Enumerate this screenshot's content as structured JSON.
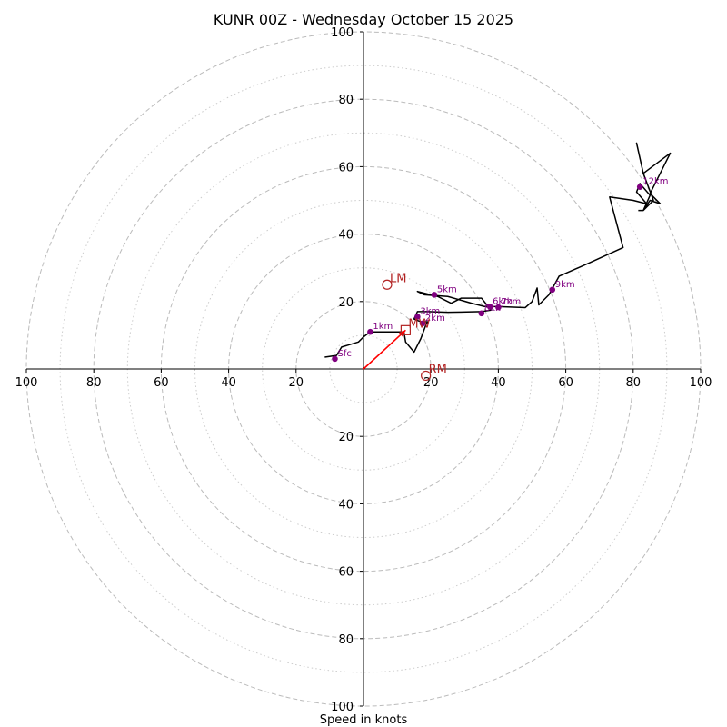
{
  "chart_data": {
    "type": "hodograph",
    "title": "KUNR 00Z - Wednesday October 15 2025",
    "xlabel": "Speed in knots",
    "ring_major": [
      20,
      40,
      60,
      80,
      100
    ],
    "ring_minor": [
      10,
      30,
      50,
      70,
      90
    ],
    "axis_tick_labels": [
      "100",
      "80",
      "60",
      "40",
      "20",
      "20",
      "40",
      "60",
      "80",
      "100"
    ],
    "axis_tick_values": [
      -100,
      -80,
      -60,
      -40,
      -20,
      20,
      40,
      60,
      80,
      100
    ],
    "y_tick_labels": [
      "100",
      "80",
      "60",
      "40",
      "20",
      "20",
      "40",
      "60",
      "80",
      "100"
    ],
    "y_tick_values": [
      100,
      80,
      60,
      40,
      20,
      -20,
      -40,
      -60,
      -80,
      -100
    ],
    "range": [
      -100,
      100
    ],
    "trace": [
      [
        -11.5,
        3.5
      ],
      [
        -8,
        4
      ],
      [
        -6.5,
        6.5
      ],
      [
        -1.5,
        8
      ],
      [
        0,
        9.5
      ],
      [
        2,
        11
      ],
      [
        12,
        11
      ],
      [
        12.5,
        8
      ],
      [
        15,
        5
      ],
      [
        17,
        9
      ],
      [
        18.5,
        13
      ],
      [
        19,
        14
      ],
      [
        17,
        14
      ],
      [
        15,
        14.8
      ],
      [
        16,
        17
      ],
      [
        19,
        17
      ],
      [
        25,
        16.8
      ],
      [
        35,
        17
      ],
      [
        38,
        17.5
      ],
      [
        37,
        18.5
      ],
      [
        35,
        21
      ],
      [
        29,
        21
      ],
      [
        26,
        19.5
      ],
      [
        22,
        21.5
      ],
      [
        16,
        23
      ],
      [
        18,
        22
      ],
      [
        25,
        21.5
      ],
      [
        32,
        19.5
      ],
      [
        36,
        18.5
      ],
      [
        40,
        18.5
      ],
      [
        48,
        18.2
      ],
      [
        50,
        20
      ],
      [
        51.5,
        24
      ],
      [
        52,
        19
      ],
      [
        55,
        22
      ],
      [
        58,
        27.5
      ],
      [
        66,
        31
      ],
      [
        77,
        36
      ],
      [
        73,
        51
      ],
      [
        80,
        50
      ],
      [
        84,
        49
      ],
      [
        81,
        52.5
      ],
      [
        82,
        55
      ],
      [
        85,
        51.5
      ],
      [
        83,
        47
      ],
      [
        85,
        50
      ],
      [
        88,
        49
      ],
      [
        85,
        52
      ],
      [
        91,
        64
      ],
      [
        83,
        58
      ],
      [
        81,
        67
      ],
      [
        83,
        58
      ],
      [
        86,
        50
      ],
      [
        83,
        47
      ],
      [
        81.5,
        47
      ]
    ],
    "height_markers": [
      {
        "label": "Sfc",
        "u": -8.5,
        "v": 3
      },
      {
        "label": "1km",
        "u": 2,
        "v": 11
      },
      {
        "label": "2km",
        "u": 17.5,
        "v": 13.5
      },
      {
        "label": "3km",
        "u": 16,
        "v": 15.5
      },
      {
        "label": "5km",
        "u": 21,
        "v": 22
      },
      {
        "label": "6km",
        "u": 37.5,
        "v": 18.5
      },
      {
        "label": "7km",
        "u": 40,
        "v": 18.3
      },
      {
        "label": "8km",
        "u": 35,
        "v": 16.5
      },
      {
        "label": "9km",
        "u": 56,
        "v": 23.5
      },
      {
        "label": "12km",
        "u": 82,
        "v": 54
      }
    ],
    "storm_motions": [
      {
        "label": "LM",
        "u": 7,
        "v": 25,
        "marker": "circle"
      },
      {
        "label": "MW",
        "u": 12.5,
        "v": 11.5,
        "marker": "square"
      },
      {
        "label": "RM",
        "u": 18.5,
        "v": -2,
        "marker": "circle"
      }
    ],
    "arrow": {
      "from": [
        0,
        0
      ],
      "to": [
        12.5,
        11.5
      ]
    },
    "colors": {
      "trace": "#000000",
      "marker": "#800080",
      "motion": "#b22222",
      "arrow": "#ff0000",
      "grid": "#bbbbbb"
    }
  }
}
